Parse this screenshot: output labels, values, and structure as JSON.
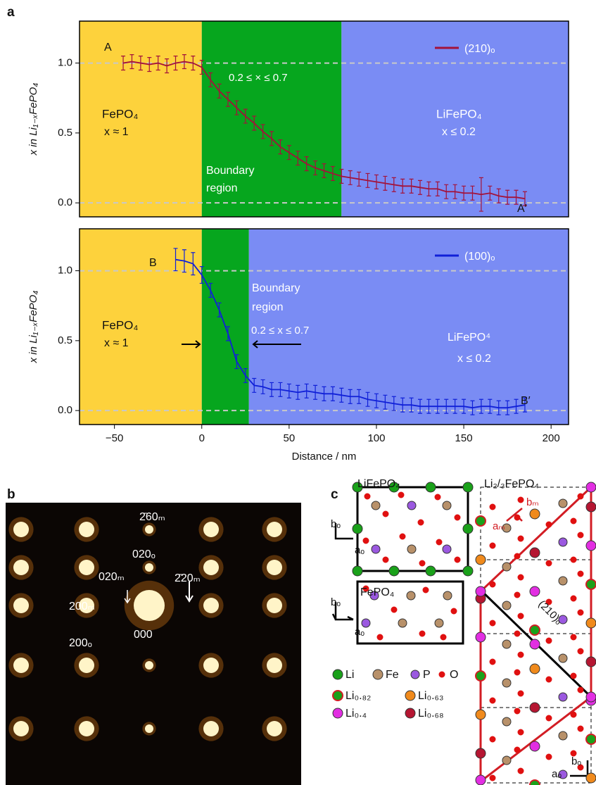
{
  "panels": {
    "a": "a",
    "b": "b",
    "c": "c"
  },
  "chart_data": [
    {
      "type": "line",
      "y_label": "x in Li₁₋ₓFePO₄",
      "xlim": [
        -70,
        210
      ],
      "ylim": [
        -0.1,
        1.3
      ],
      "yticks": [
        {
          "value": 0,
          "label": "0.0"
        },
        {
          "value": 0.5,
          "label": "0.5"
        },
        {
          "value": 1,
          "label": "1.0"
        }
      ],
      "reference_lines": [
        0,
        1
      ],
      "regions": [
        {
          "x0": -70,
          "x1": 0,
          "color": "#fdd23c"
        },
        {
          "x0": 0,
          "x1": 80,
          "color": "#06a61e"
        },
        {
          "x0": 80,
          "x1": 210,
          "color": "#7a8cf4"
        }
      ],
      "annotations": [
        "A",
        "0.2 ≤ × ≤ 0.7",
        "FePO₄",
        "x ≈ 1",
        "LiFePO₄",
        "x ≤ 0.2",
        "Boundary",
        "region",
        "A′"
      ],
      "series": [
        {
          "name": "(210)ₒ",
          "color": "#a3123a",
          "x": [
            -45,
            -40,
            -35,
            -30,
            -25,
            -20,
            -15,
            -10,
            -5,
            0,
            5,
            10,
            15,
            20,
            25,
            30,
            35,
            40,
            45,
            50,
            55,
            60,
            65,
            70,
            75,
            80,
            85,
            90,
            95,
            100,
            105,
            110,
            115,
            120,
            125,
            130,
            135,
            140,
            145,
            150,
            155,
            160,
            165,
            170,
            175,
            180,
            185
          ],
          "values": [
            1.0,
            1.01,
            1.0,
            0.99,
            1.0,
            0.98,
            1.0,
            1.01,
            1.0,
            0.97,
            0.88,
            0.8,
            0.74,
            0.68,
            0.62,
            0.57,
            0.51,
            0.46,
            0.4,
            0.36,
            0.32,
            0.28,
            0.25,
            0.23,
            0.21,
            0.19,
            0.18,
            0.17,
            0.16,
            0.15,
            0.14,
            0.13,
            0.12,
            0.12,
            0.11,
            0.1,
            0.1,
            0.08,
            0.08,
            0.07,
            0.07,
            0.06,
            0.07,
            0.05,
            0.04,
            0.04,
            0.03
          ],
          "errors": [
            0.05,
            0.05,
            0.05,
            0.05,
            0.05,
            0.05,
            0.05,
            0.05,
            0.05,
            0.05,
            0.05,
            0.05,
            0.05,
            0.05,
            0.05,
            0.05,
            0.05,
            0.05,
            0.05,
            0.05,
            0.05,
            0.05,
            0.05,
            0.05,
            0.05,
            0.05,
            0.05,
            0.05,
            0.05,
            0.05,
            0.05,
            0.05,
            0.05,
            0.05,
            0.05,
            0.05,
            0.05,
            0.05,
            0.05,
            0.05,
            0.05,
            0.12,
            0.05,
            0.05,
            0.05,
            0.05,
            0.05
          ]
        }
      ]
    },
    {
      "type": "line",
      "y_label": "x in Li₁₋ₓFePO₄",
      "x_label": "Distance / nm",
      "xlim": [
        -70,
        210
      ],
      "ylim": [
        -0.1,
        1.3
      ],
      "xticks": [
        {
          "value": -50,
          "label": "−50"
        },
        0,
        50,
        100,
        150,
        200
      ],
      "yticks": [
        {
          "value": 0,
          "label": "0.0"
        },
        {
          "value": 0.5,
          "label": "0.5"
        },
        {
          "value": 1,
          "label": "1.0"
        }
      ],
      "reference_lines": [
        0,
        1
      ],
      "regions": [
        {
          "x0": -70,
          "x1": 0,
          "color": "#fdd23c"
        },
        {
          "x0": 0,
          "x1": 27,
          "color": "#06a61e"
        },
        {
          "x0": 27,
          "x1": 210,
          "color": "#7a8cf4"
        }
      ],
      "annotations": [
        "B",
        "Boundary",
        "region",
        "FePO₄",
        "x ≈ 1",
        "0.2 ≤ x ≤ 0.7",
        "LiFePO⁴",
        "x ≤ 0.2",
        "B′"
      ],
      "series": [
        {
          "name": "(100)ₒ",
          "color": "#1020d8",
          "x": [
            -15,
            -10,
            -5,
            0,
            5,
            10,
            15,
            20,
            25,
            30,
            35,
            40,
            45,
            50,
            55,
            60,
            65,
            70,
            75,
            80,
            85,
            90,
            95,
            100,
            105,
            110,
            115,
            120,
            125,
            130,
            135,
            140,
            145,
            150,
            155,
            160,
            165,
            170,
            175,
            180,
            185
          ],
          "values": [
            1.08,
            1.07,
            1.05,
            0.97,
            0.86,
            0.72,
            0.55,
            0.35,
            0.25,
            0.18,
            0.17,
            0.15,
            0.15,
            0.14,
            0.13,
            0.14,
            0.13,
            0.12,
            0.12,
            0.11,
            0.1,
            0.1,
            0.08,
            0.07,
            0.06,
            0.05,
            0.04,
            0.04,
            0.03,
            0.03,
            0.03,
            0.03,
            0.03,
            0.03,
            0.02,
            0.03,
            0.03,
            0.02,
            0.02,
            0.03,
            0.04
          ],
          "errors": [
            0.08,
            0.08,
            0.08,
            0.06,
            0.05,
            0.05,
            0.05,
            0.05,
            0.05,
            0.05,
            0.05,
            0.05,
            0.05,
            0.05,
            0.05,
            0.05,
            0.05,
            0.05,
            0.05,
            0.05,
            0.05,
            0.05,
            0.05,
            0.05,
            0.05,
            0.05,
            0.05,
            0.05,
            0.05,
            0.05,
            0.05,
            0.05,
            0.05,
            0.05,
            0.05,
            0.05,
            0.05,
            0.05,
            0.05,
            0.05,
            0.05
          ]
        }
      ]
    }
  ],
  "diffraction": {
    "labels": [
      "2̄60ₘ",
      "020ₒ",
      "020ₘ",
      "2̄20ₘ",
      "200ₘ",
      "200ₒ",
      "000"
    ]
  },
  "crystal": {
    "titles": [
      "LiFePO₄",
      "Li₂/₃FePO₄",
      "FePO₄"
    ],
    "axes": [
      "bₒ",
      "aₒ",
      "bₒ",
      "aₒ",
      "bₘ",
      "aₘ",
      "bₒ",
      "aₒ",
      "(210)ₒ"
    ],
    "legend": [
      "Li",
      "Fe",
      "P",
      "O",
      "Li₀.₈₂",
      "Li₀.₆₃",
      "Li₀.₄",
      "Li₀.₆₈"
    ]
  }
}
